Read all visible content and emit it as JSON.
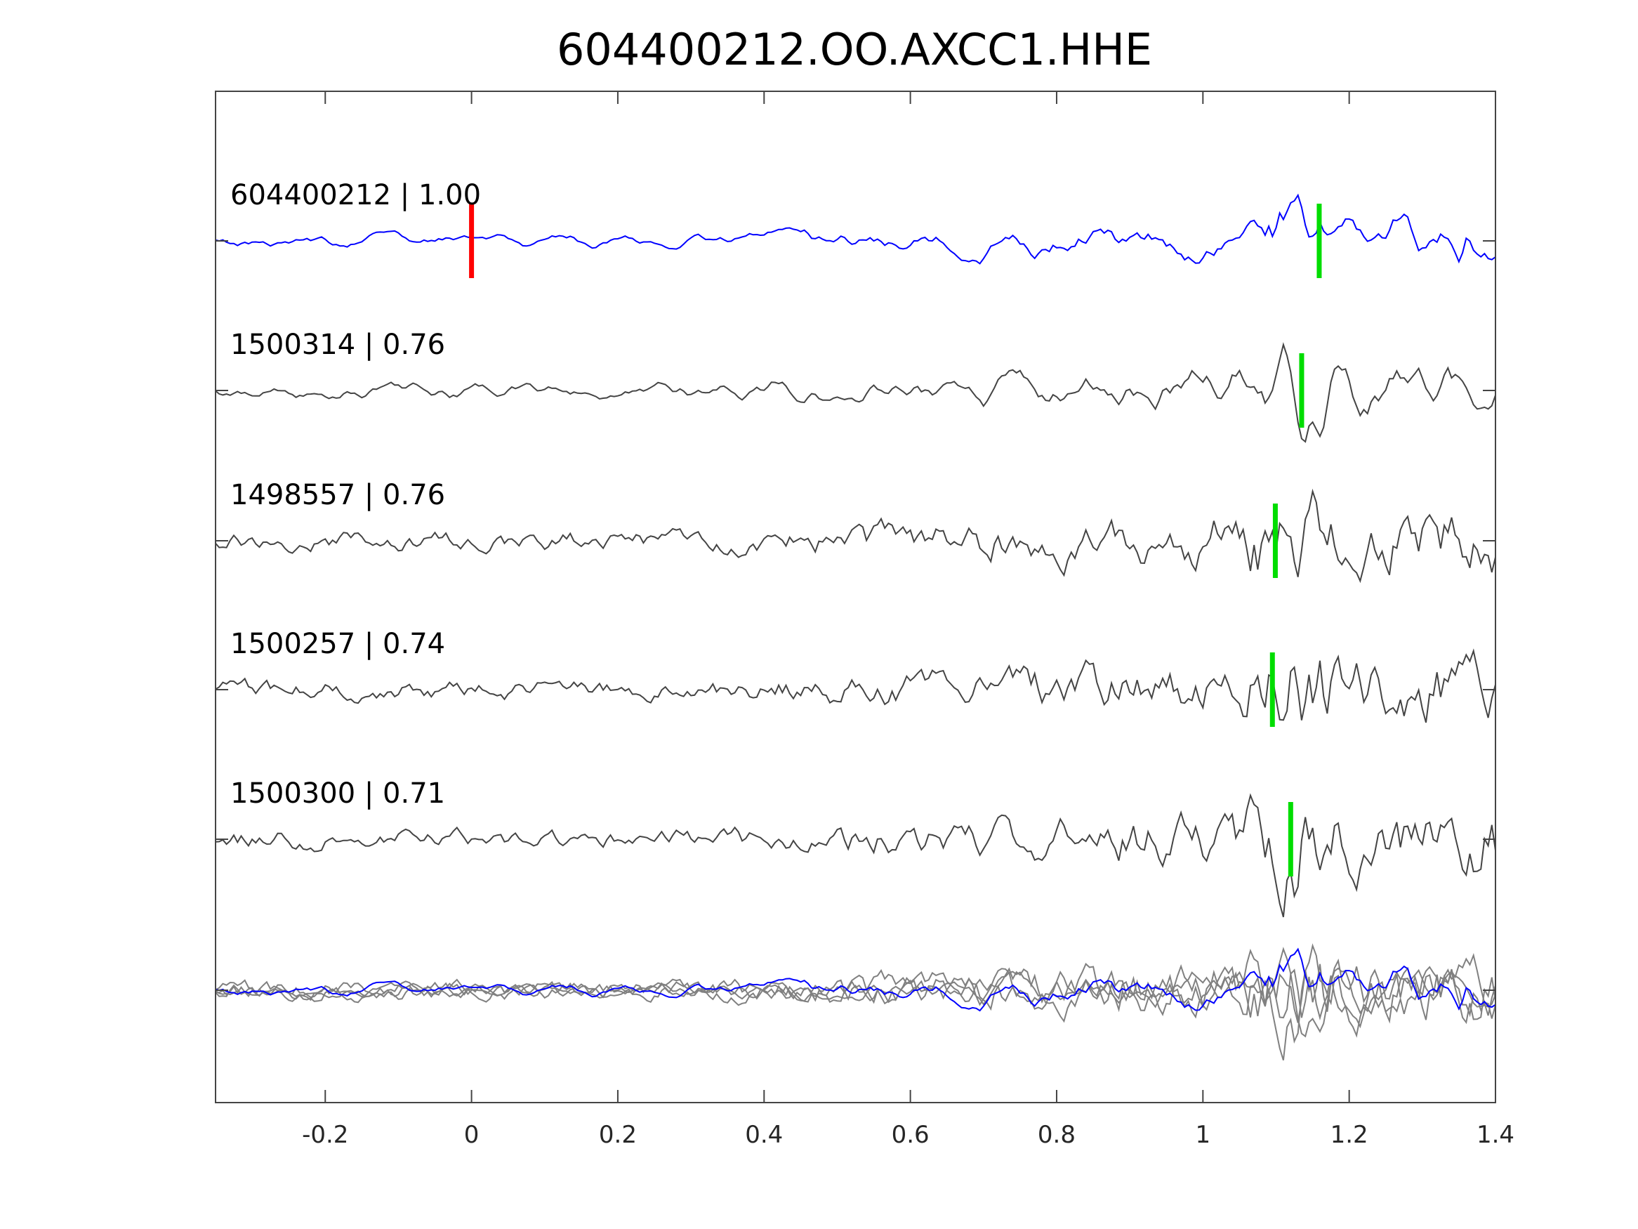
{
  "chart_data": {
    "type": "line",
    "title": "604400212.OO.AXCC1.HHE",
    "xlabel": "",
    "ylabel": "",
    "xlim": [
      -0.35,
      1.4
    ],
    "xticks": [
      -0.2,
      0,
      0.2,
      0.4,
      0.6,
      0.8,
      1,
      1.2,
      1.4
    ],
    "xtick_labels": [
      "-0.2",
      "0",
      "0.2",
      "0.4",
      "0.6",
      "0.8",
      "1",
      "1.2",
      "1.4"
    ],
    "grid": false,
    "reference_pick": {
      "time": 0.0,
      "color": "#ff0000"
    },
    "pick_color": "#00dd00",
    "traces": [
      {
        "id": "604400212",
        "cc": "1.00",
        "label": "604400212 | 1.00",
        "color": "#0000ff",
        "pick": 1.159,
        "seed": 11
      },
      {
        "id": "1500314",
        "cc": "0.76",
        "label": "1500314 | 0.76",
        "color": "#444444",
        "pick": 1.135,
        "seed": 23
      },
      {
        "id": "1498557",
        "cc": "0.76",
        "label": "1498557 | 0.76",
        "color": "#444444",
        "pick": 1.099,
        "seed": 37
      },
      {
        "id": "1500257",
        "cc": "0.74",
        "label": "1500257 | 0.74",
        "color": "#444444",
        "pick": 1.095,
        "seed": 41
      },
      {
        "id": "1500300",
        "cc": "0.71",
        "label": "1500300 | 0.71",
        "color": "#444444",
        "pick": 1.12,
        "seed": 53
      }
    ],
    "stack": {
      "reference_color": "#0000ff",
      "others_color": "#808080"
    }
  }
}
